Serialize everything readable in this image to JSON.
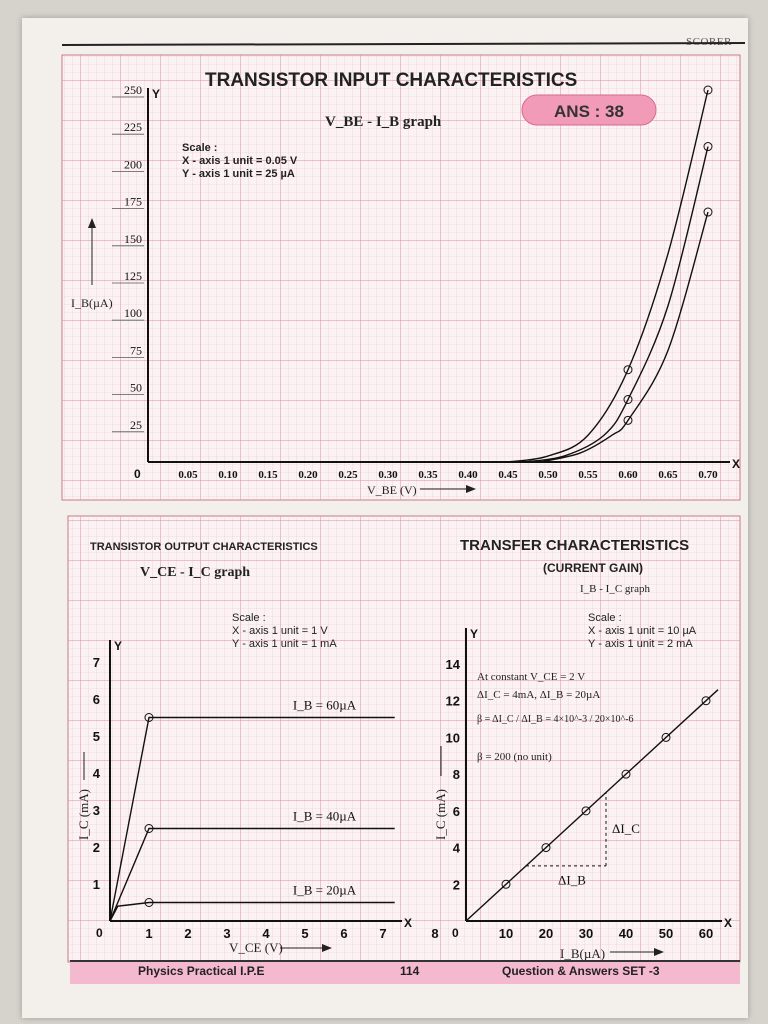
{
  "header": {
    "brand": "SCORER"
  },
  "input_chart": {
    "title": "TRANSISTOR INPUT CHARACTERISTICS",
    "subtitle": "V_BE - I_B graph",
    "ans_badge": "ANS : 38",
    "scale": [
      "Scale :",
      "X - axis 1 unit = 0.05 V",
      "Y - axis 1 unit = 25 µA"
    ],
    "y_axis_letter": "Y",
    "x_axis_letter": "X",
    "ylabel": "I_B(µA)",
    "xlabel": "V_BE (V)",
    "origin": "0",
    "x_ticks": [
      "0.05",
      "0.10",
      "0.15",
      "0.20",
      "0.25",
      "0.30",
      "0.35",
      "0.40",
      "0.45",
      "0.50",
      "0.55",
      "0.60",
      "0.65",
      "0.70"
    ],
    "y_ticks": [
      "25",
      "50",
      "75",
      "100",
      "125",
      "150",
      "175",
      "200",
      "225",
      "250"
    ]
  },
  "output_chart": {
    "title": "TRANSISTOR OUTPUT CHARACTERISTICS",
    "subtitle": "V_CE - I_C graph",
    "scale": [
      "Scale :",
      "X - axis 1 unit = 1 V",
      "Y - axis 1 unit = 1 mA"
    ],
    "y_axis_letter": "Y",
    "x_axis_letter": "X",
    "ylabel": "I_C (mA)",
    "xlabel": "V_CE (V)",
    "origin": "0",
    "x_ticks": [
      "1",
      "2",
      "3",
      "4",
      "5",
      "6",
      "7",
      "8"
    ],
    "y_ticks": [
      "1",
      "2",
      "3",
      "4",
      "5",
      "6",
      "7"
    ],
    "curve_labels": [
      "I_B = 60µA",
      "I_B = 40µA",
      "I_B = 20µA"
    ]
  },
  "transfer_chart": {
    "title": "TRANSFER CHARACTERISTICS",
    "subtitle": "(CURRENT GAIN)",
    "sub2": "I_B - I_C graph",
    "scale": [
      "Scale :",
      "X - axis 1 unit = 10 µA",
      "Y - axis 1 unit = 2 mA"
    ],
    "y_axis_letter": "Y",
    "x_axis_letter": "X",
    "ylabel": "I_C (mA)",
    "xlabel": "I_B(µA)",
    "origin": "0",
    "x_ticks": [
      "10",
      "20",
      "30",
      "40",
      "50",
      "60"
    ],
    "y_ticks": [
      "2",
      "4",
      "6",
      "8",
      "10",
      "12",
      "14"
    ],
    "notes": [
      "At constant V_CE = 2 V",
      "ΔI_C = 4mA, ΔI_B = 20µA",
      "β = ΔI_C / ΔI_B = 4×10^-3 / 20×10^-6",
      "β = 200 (no unit)"
    ],
    "delta_ic": "ΔI_C",
    "delta_ib": "ΔI_B"
  },
  "footer": {
    "left": "Physics Practical I.P.E",
    "center": "114",
    "right": "Question & Answers SET -3"
  },
  "colors": {
    "grid": "#e7a7b7",
    "grid_major": "#d98095",
    "ink": "#111111",
    "badge": "#f29bb8",
    "footer": "#f4b8cf"
  },
  "chart_data": [
    {
      "type": "line",
      "title": "TRANSISTOR INPUT CHARACTERISTICS",
      "xlabel": "V_BE (V)",
      "ylabel": "I_B(µA)",
      "xlim": [
        0,
        0.72
      ],
      "ylim": [
        0,
        250
      ],
      "series": [
        {
          "x": [
            0.45,
            0.5,
            0.55,
            0.6,
            0.65,
            0.7
          ],
          "y": [
            0,
            4,
            18,
            62,
            140,
            250
          ]
        },
        {
          "x": [
            0.47,
            0.52,
            0.57,
            0.6,
            0.65,
            0.7
          ],
          "y": [
            0,
            4,
            18,
            42,
            105,
            212
          ]
        },
        {
          "x": [
            0.49,
            0.54,
            0.58,
            0.6,
            0.65,
            0.7
          ],
          "y": [
            0,
            6,
            18,
            28,
            75,
            168
          ]
        }
      ],
      "marked_points": [
        [
          0.6,
          62
        ],
        [
          0.6,
          42
        ],
        [
          0.6,
          28
        ],
        [
          0.7,
          250
        ],
        [
          0.7,
          212
        ],
        [
          0.7,
          168
        ]
      ],
      "grid": true
    },
    {
      "type": "line",
      "title": "TRANSISTOR OUTPUT CHARACTERISTICS",
      "xlabel": "V_CE (V)",
      "ylabel": "I_C (mA)",
      "xlim": [
        0,
        8
      ],
      "ylim": [
        0,
        7.5
      ],
      "series": [
        {
          "name": "I_B = 60µA",
          "x": [
            0,
            1,
            7.3
          ],
          "y": [
            0,
            5.5,
            5.5
          ]
        },
        {
          "name": "I_B = 40µA",
          "x": [
            0,
            1,
            7.3
          ],
          "y": [
            0,
            2.5,
            2.5
          ]
        },
        {
          "name": "I_B = 20µA",
          "x": [
            0,
            0.2,
            1,
            7.3
          ],
          "y": [
            0,
            0.4,
            0.5,
            0.5
          ]
        }
      ],
      "marked_points": [
        [
          1,
          5.5
        ],
        [
          1,
          2.5
        ],
        [
          1,
          0.5
        ]
      ],
      "grid": true
    },
    {
      "type": "line",
      "title": "TRANSFER CHARACTERISTICS",
      "xlabel": "I_B(µA)",
      "ylabel": "I_C (mA)",
      "xlim": [
        0,
        65
      ],
      "ylim": [
        0,
        15
      ],
      "series": [
        {
          "x": [
            0,
            10,
            20,
            30,
            40,
            50,
            60
          ],
          "y": [
            0,
            2,
            4,
            6,
            8,
            10,
            12
          ]
        }
      ],
      "grid": true
    }
  ]
}
